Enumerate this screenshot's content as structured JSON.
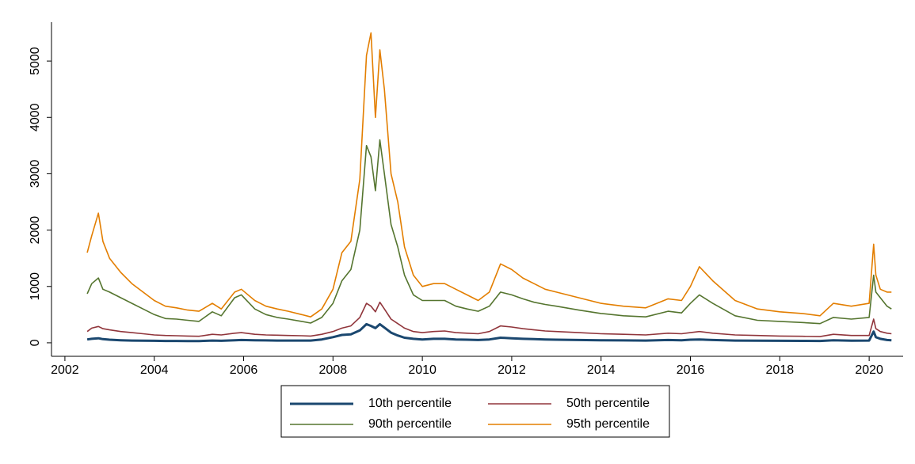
{
  "chart_data": {
    "type": "line",
    "x": [
      2002.5,
      2002.6,
      2002.75,
      2002.85,
      2003.0,
      2003.25,
      2003.5,
      2003.75,
      2004.0,
      2004.25,
      2004.5,
      2004.75,
      2005.0,
      2005.3,
      2005.5,
      2005.8,
      2005.95,
      2006.25,
      2006.5,
      2006.75,
      2007.0,
      2007.3,
      2007.5,
      2007.75,
      2008.0,
      2008.2,
      2008.4,
      2008.6,
      2008.75,
      2008.85,
      2008.95,
      2009.05,
      2009.15,
      2009.3,
      2009.45,
      2009.6,
      2009.8,
      2010.0,
      2010.25,
      2010.5,
      2010.75,
      2011.0,
      2011.25,
      2011.5,
      2011.75,
      2012.0,
      2012.25,
      2012.5,
      2012.75,
      2013.0,
      2013.5,
      2014.0,
      2014.5,
      2015.0,
      2015.5,
      2015.8,
      2016.0,
      2016.2,
      2016.5,
      2017.0,
      2017.5,
      2018.0,
      2018.5,
      2018.9,
      2019.2,
      2019.6,
      2020.0,
      2020.1,
      2020.15,
      2020.25,
      2020.4,
      2020.5
    ],
    "series": [
      {
        "name": "10th percentile",
        "color": "#1a476f",
        "values": [
          60,
          70,
          80,
          65,
          55,
          45,
          40,
          38,
          35,
          33,
          32,
          31,
          30,
          40,
          35,
          45,
          50,
          45,
          42,
          40,
          40,
          40,
          40,
          60,
          100,
          140,
          150,
          220,
          330,
          300,
          260,
          330,
          270,
          180,
          130,
          90,
          70,
          60,
          70,
          70,
          60,
          55,
          50,
          60,
          90,
          80,
          70,
          65,
          60,
          55,
          50,
          45,
          42,
          40,
          50,
          45,
          55,
          60,
          50,
          40,
          38,
          36,
          34,
          32,
          45,
          38,
          40,
          200,
          100,
          70,
          50,
          45
        ]
      },
      {
        "name": "50th percentile",
        "color": "#90353b",
        "values": [
          200,
          260,
          290,
          250,
          230,
          200,
          180,
          160,
          140,
          130,
          125,
          120,
          115,
          150,
          140,
          170,
          180,
          150,
          140,
          135,
          130,
          125,
          120,
          150,
          200,
          260,
          300,
          450,
          700,
          650,
          550,
          720,
          600,
          420,
          340,
          260,
          200,
          180,
          200,
          210,
          180,
          170,
          160,
          200,
          300,
          280,
          250,
          230,
          210,
          200,
          180,
          160,
          150,
          140,
          170,
          160,
          180,
          200,
          170,
          140,
          130,
          120,
          115,
          110,
          150,
          130,
          130,
          420,
          250,
          200,
          170,
          160
        ]
      },
      {
        "name": "90th percentile",
        "color": "#55752f",
        "values": [
          870,
          1050,
          1150,
          950,
          900,
          800,
          700,
          600,
          500,
          430,
          420,
          400,
          380,
          550,
          480,
          800,
          850,
          600,
          500,
          450,
          420,
          380,
          350,
          450,
          700,
          1100,
          1300,
          2000,
          3500,
          3300,
          2700,
          3600,
          3000,
          2100,
          1700,
          1200,
          850,
          750,
          750,
          750,
          650,
          600,
          560,
          650,
          900,
          850,
          780,
          720,
          680,
          650,
          580,
          520,
          480,
          460,
          560,
          530,
          700,
          850,
          700,
          480,
          400,
          380,
          360,
          340,
          450,
          420,
          450,
          1200,
          900,
          800,
          650,
          600
        ]
      },
      {
        "name": "95th percentile",
        "color": "#e37e00",
        "values": [
          1600,
          1900,
          2300,
          1800,
          1500,
          1250,
          1050,
          900,
          750,
          650,
          620,
          580,
          560,
          700,
          600,
          900,
          950,
          750,
          650,
          600,
          560,
          500,
          460,
          600,
          950,
          1600,
          1800,
          2900,
          5100,
          5500,
          4000,
          5200,
          4500,
          3000,
          2500,
          1700,
          1200,
          1000,
          1050,
          1050,
          950,
          850,
          750,
          900,
          1400,
          1300,
          1150,
          1050,
          950,
          900,
          800,
          700,
          650,
          620,
          780,
          750,
          1000,
          1350,
          1100,
          750,
          600,
          550,
          520,
          480,
          700,
          650,
          700,
          1750,
          1200,
          950,
          900,
          900
        ]
      }
    ],
    "xlim": [
      2001.7,
      2020.76
    ],
    "xticks": [
      2002,
      2004,
      2006,
      2008,
      2010,
      2012,
      2014,
      2016,
      2018,
      2020
    ],
    "ylim": [
      -240,
      5690
    ],
    "yticks": [
      0,
      1000,
      2000,
      3000,
      4000,
      5000
    ],
    "grid": false
  }
}
